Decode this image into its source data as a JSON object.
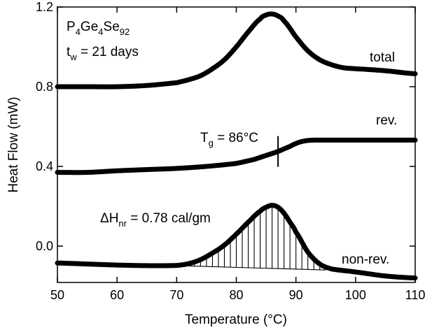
{
  "chart_data": {
    "type": "line",
    "xlabel": "Temperature (°C)",
    "ylabel": "Heat Flow (mW)",
    "xlim": [
      50,
      110
    ],
    "ylim": [
      -0.18,
      1.2
    ],
    "xticks": [
      50,
      60,
      70,
      80,
      90,
      100,
      110
    ],
    "yticks": [
      0.0,
      0.4,
      0.8,
      1.2
    ],
    "xtick_labels": [
      "50",
      "60",
      "70",
      "80",
      "90",
      "100",
      "110"
    ],
    "ytick_labels": [
      "0.0",
      "0.4",
      "0.8",
      "1.2"
    ],
    "series": [
      {
        "name": "total",
        "label": "total",
        "x": [
          50,
          55,
          60,
          65,
          70,
          72,
          74,
          76,
          78,
          80,
          82,
          84,
          85,
          86,
          87,
          88,
          90,
          92,
          94,
          96,
          98,
          100,
          105,
          110
        ],
        "y": [
          0.8,
          0.8,
          0.8,
          0.806,
          0.82,
          0.835,
          0.855,
          0.89,
          0.935,
          1.0,
          1.075,
          1.14,
          1.16,
          1.165,
          1.155,
          1.13,
          1.05,
          0.98,
          0.935,
          0.91,
          0.895,
          0.89,
          0.88,
          0.865
        ]
      },
      {
        "name": "rev.",
        "label": "rev.",
        "x": [
          50,
          55,
          60,
          65,
          70,
          75,
          80,
          83,
          85,
          87,
          89,
          90,
          91,
          92,
          93,
          95,
          100,
          105,
          110
        ],
        "y": [
          0.37,
          0.37,
          0.378,
          0.384,
          0.39,
          0.4,
          0.415,
          0.435,
          0.455,
          0.475,
          0.5,
          0.515,
          0.525,
          0.53,
          0.532,
          0.532,
          0.532,
          0.532,
          0.532
        ]
      },
      {
        "name": "non-rev.",
        "label": "non-rev.",
        "x": [
          50,
          55,
          60,
          65,
          70,
          72,
          74,
          76,
          78,
          80,
          82,
          84,
          85,
          86,
          87,
          88,
          89,
          90,
          92,
          94,
          96,
          100,
          105,
          110
        ],
        "y": [
          -0.085,
          -0.09,
          -0.095,
          -0.098,
          -0.097,
          -0.088,
          -0.068,
          -0.035,
          0.005,
          0.06,
          0.12,
          0.175,
          0.195,
          0.205,
          0.195,
          0.165,
          0.12,
          0.07,
          -0.03,
          -0.09,
          -0.115,
          -0.13,
          -0.15,
          -0.16
        ]
      }
    ],
    "integration_baseline": {
      "x": [
        70,
        95
      ],
      "y": [
        -0.098,
        -0.12
      ]
    },
    "annotations": {
      "sample": {
        "main": "P",
        "sub1": "4",
        "mid1": "Ge",
        "sub2": "4",
        "mid2": "Se",
        "sub3": "92"
      },
      "tw": {
        "main": "t",
        "sub": "w",
        "rest": " = 21 days"
      },
      "tg": {
        "main": "T",
        "sub": "g",
        "rest": " = 86°C",
        "x": 87
      },
      "dh": {
        "main": "ΔH",
        "sub": "nr",
        "rest": " = 0.78 cal/gm"
      }
    },
    "grid": false,
    "legend": "none"
  }
}
